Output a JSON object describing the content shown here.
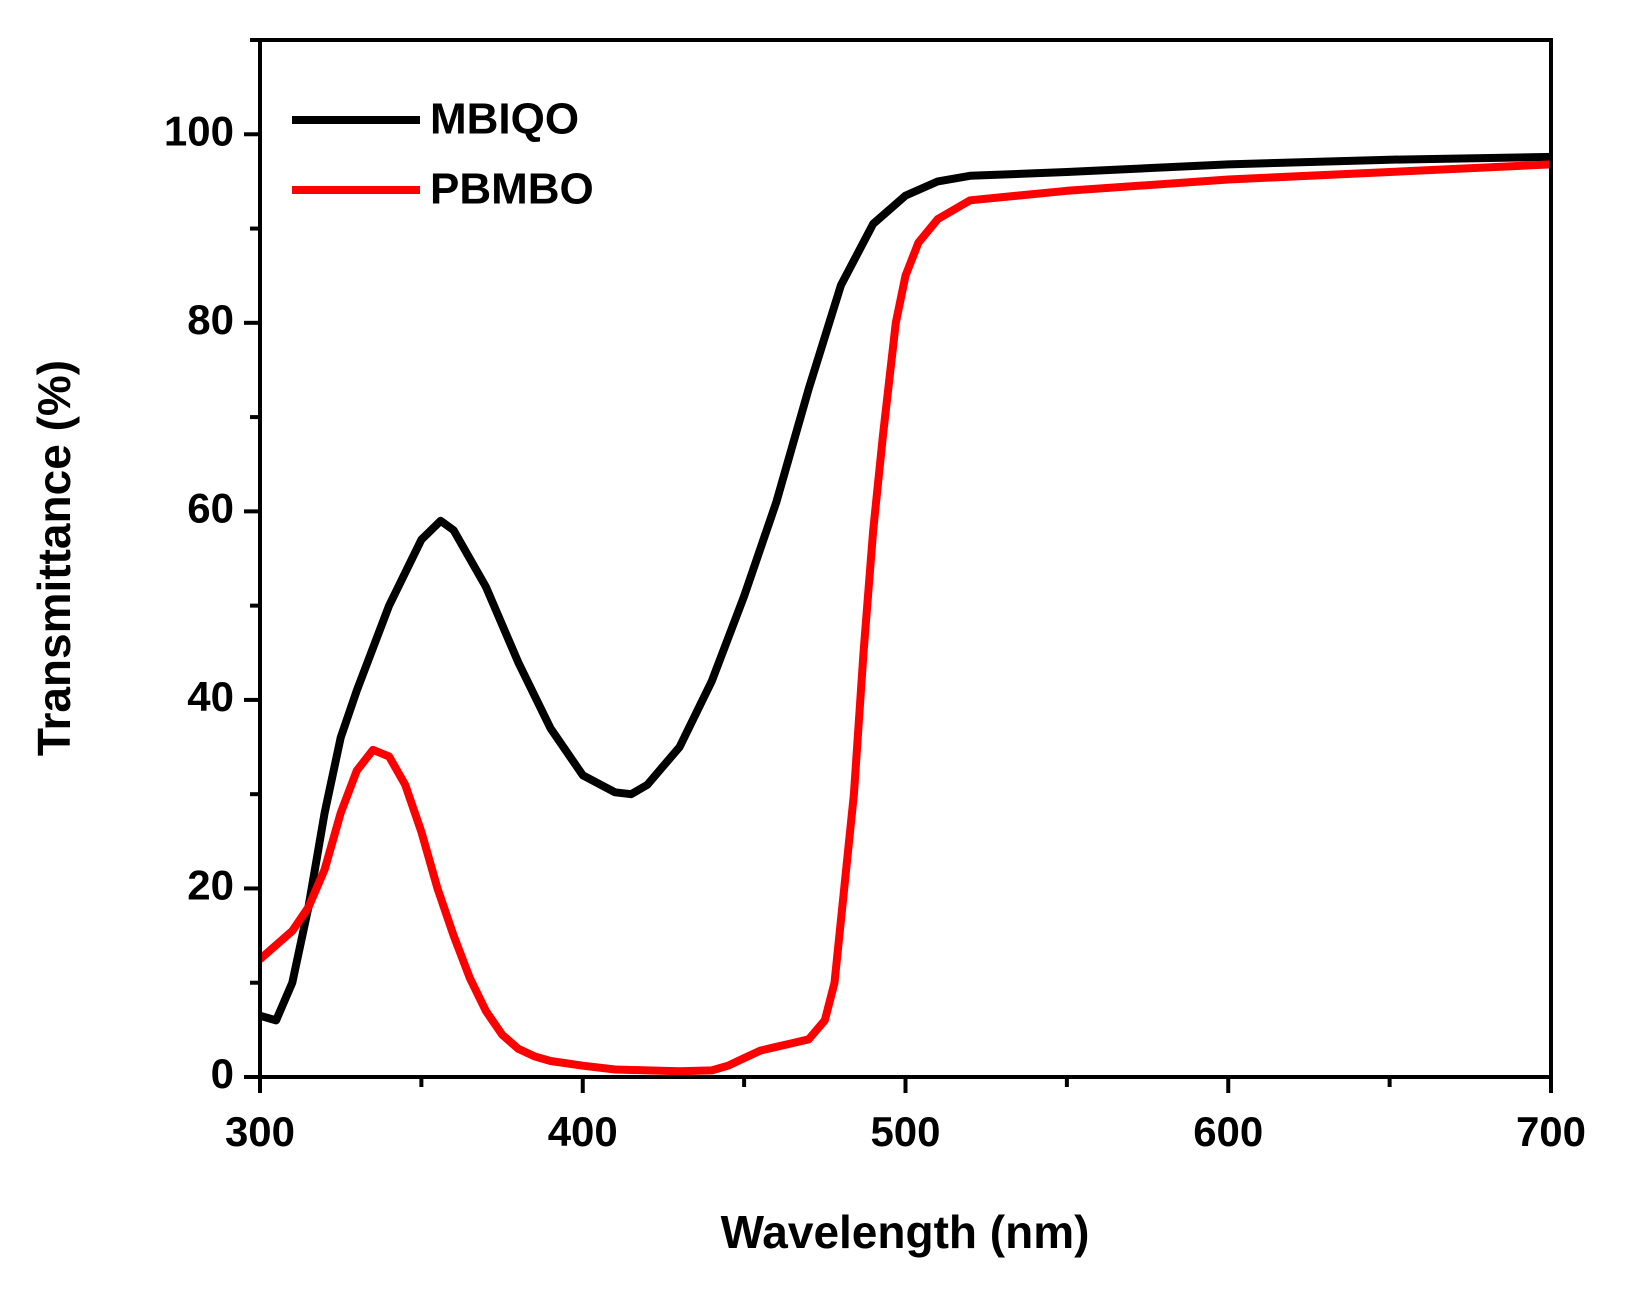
{
  "chart_data": {
    "type": "line",
    "xlabel": "Wavelength (nm)",
    "ylabel": "Transmittance (%)",
    "xlim": [
      300,
      700
    ],
    "ylim": [
      0,
      110
    ],
    "xticks": [
      300,
      400,
      500,
      600,
      700
    ],
    "yticks": [
      0,
      20,
      40,
      60,
      80,
      100
    ],
    "xminor_ticks": [
      350,
      450,
      550,
      650
    ],
    "yminor_ticks": [
      10,
      30,
      50,
      70,
      90,
      110
    ],
    "legend": "upper left",
    "grid": false,
    "series": [
      {
        "name": "MBIQO",
        "color": "#000000",
        "x": [
          300,
          305,
          310,
          315,
          320,
          325,
          330,
          340,
          350,
          356,
          360,
          370,
          380,
          390,
          400,
          410,
          415,
          420,
          430,
          440,
          450,
          460,
          470,
          480,
          490,
          500,
          510,
          520,
          550,
          600,
          650,
          700
        ],
        "values": [
          6.5,
          6,
          10,
          18,
          28,
          36,
          41,
          50,
          57,
          59,
          58,
          52,
          44,
          37,
          32,
          30.2,
          30,
          31,
          35,
          42,
          51,
          61,
          73,
          84,
          90.5,
          93.5,
          95,
          95.6,
          96,
          96.8,
          97.3,
          97.6
        ]
      },
      {
        "name": "PBMBO",
        "color": "#ff0000",
        "x": [
          300,
          310,
          315,
          320,
          325,
          330,
          335,
          340,
          345,
          350,
          355,
          360,
          365,
          370,
          375,
          380,
          385,
          390,
          400,
          410,
          420,
          430,
          440,
          445,
          450,
          455,
          460,
          465,
          470,
          475,
          478,
          481,
          484,
          487,
          490,
          493,
          497,
          500,
          504,
          510,
          520,
          550,
          600,
          650,
          700
        ],
        "values": [
          12.5,
          15.5,
          18,
          22,
          28,
          32.5,
          34.7,
          34,
          31,
          26,
          20,
          15,
          10.5,
          7,
          4.5,
          3,
          2.2,
          1.7,
          1.2,
          0.8,
          0.7,
          0.6,
          0.7,
          1.2,
          2,
          2.8,
          3.2,
          3.6,
          4,
          6,
          10,
          20,
          30,
          45,
          58,
          68,
          80,
          85,
          88.5,
          91,
          93,
          94,
          95.2,
          96,
          96.8
        ]
      }
    ]
  }
}
